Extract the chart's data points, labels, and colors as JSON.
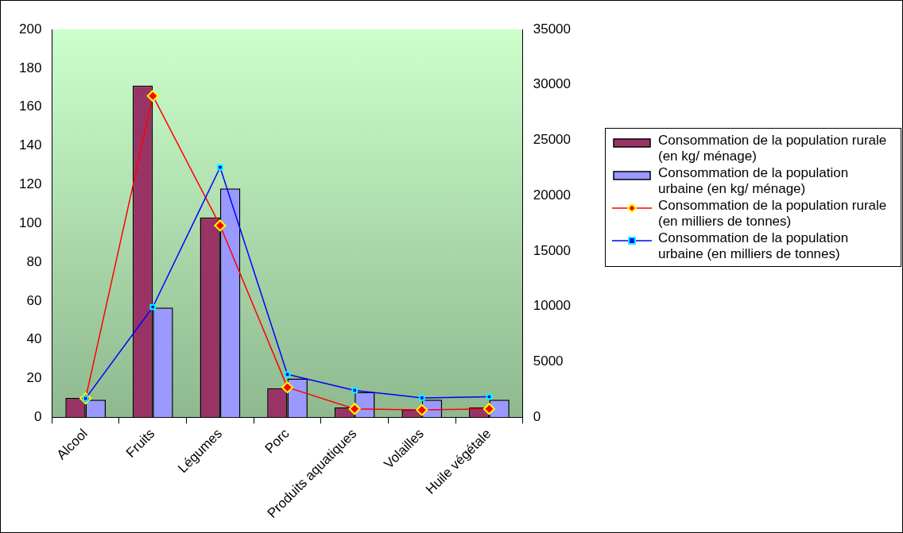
{
  "chart_data": {
    "type": "bar",
    "categories": [
      "Alcool",
      "Fruits",
      "Légumes",
      "Porc",
      "Produits aquatiques",
      "Volailles",
      "Huile végétale"
    ],
    "ylim": [
      0,
      200
    ],
    "yticks": [
      0,
      20,
      40,
      60,
      80,
      100,
      120,
      140,
      160,
      180,
      200
    ],
    "y2lim": [
      0,
      35000
    ],
    "y2ticks": [
      0,
      5000,
      10000,
      15000,
      20000,
      25000,
      30000,
      35000
    ],
    "grid": false,
    "legend": "right",
    "series": [
      {
        "name": "Consommation de la population rurale (en kg/ ménage)",
        "color": "#993366",
        "values": [
          10,
          171,
          103,
          15,
          5,
          4,
          5
        ]
      },
      {
        "name": "Consommation de la population urbaine (en kg/ ménage)",
        "color": "#9999ff",
        "values": [
          9,
          56.5,
          118,
          20,
          13,
          9,
          9
        ]
      },
      {
        "name": "Consommation de la population rurale (en milliers de tonnes)",
        "type": "line",
        "axis": "y2",
        "marker": "diamond",
        "color": "#ff0000",
        "values": [
          1700,
          29000,
          17300,
          2700,
          760,
          660,
          760
        ]
      },
      {
        "name": "Consommation de la population urbaine (en milliers de tonnes)",
        "type": "line",
        "axis": "y2",
        "marker": "square",
        "color": "#0000ff",
        "values": [
          1700,
          9950,
          22550,
          3870,
          2430,
          1750,
          1850
        ]
      }
    ]
  }
}
